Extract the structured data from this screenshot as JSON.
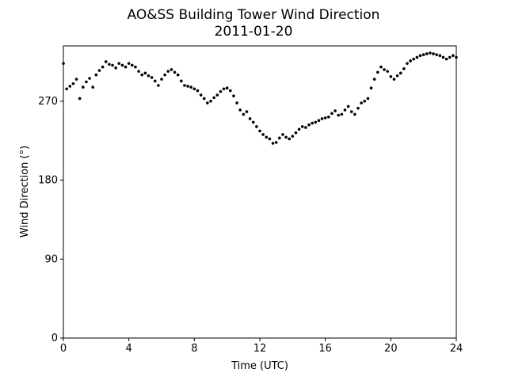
{
  "chart_data": {
    "type": "scatter",
    "title": "AO&SS Building Tower Wind Direction",
    "subtitle": "2011-01-20",
    "x_label": "Time (UTC)",
    "y_label": "Wind Direction (°)",
    "color": "#000000",
    "xlim": [
      0,
      24
    ],
    "xticks": [
      0,
      4,
      8,
      12,
      16,
      20,
      24
    ],
    "ylim": [
      0,
      333
    ],
    "yticks": [
      0,
      90,
      180,
      270
    ],
    "x": [
      0,
      0.2,
      0.4,
      0.6,
      0.8,
      1,
      1.2,
      1.4,
      1.6,
      1.8,
      2,
      2.2,
      2.4,
      2.6,
      2.8,
      3,
      3.2,
      3.4,
      3.6,
      3.8,
      4,
      4.2,
      4.4,
      4.6,
      4.8,
      5,
      5.2,
      5.4,
      5.6,
      5.8,
      6,
      6.2,
      6.4,
      6.6,
      6.8,
      7,
      7.2,
      7.4,
      7.6,
      7.8,
      8,
      8.2,
      8.4,
      8.6,
      8.8,
      9,
      9.2,
      9.4,
      9.6,
      9.8,
      10,
      10.2,
      10.4,
      10.6,
      10.8,
      11,
      11.2,
      11.4,
      11.6,
      11.8,
      12,
      12.2,
      12.4,
      12.6,
      12.8,
      13,
      13.2,
      13.4,
      13.6,
      13.8,
      14,
      14.2,
      14.4,
      14.6,
      14.8,
      15,
      15.2,
      15.4,
      15.6,
      15.8,
      16,
      16.2,
      16.4,
      16.6,
      16.8,
      17,
      17.2,
      17.4,
      17.6,
      17.8,
      18,
      18.2,
      18.4,
      18.6,
      18.8,
      19,
      19.2,
      19.4,
      19.6,
      19.8,
      20,
      20.2,
      20.4,
      20.6,
      20.8,
      21,
      21.2,
      21.4,
      21.6,
      21.8,
      22,
      22.2,
      22.4,
      22.6,
      22.8,
      23,
      23.2,
      23.4,
      23.6,
      23.8,
      24
    ],
    "values": [
      313,
      284,
      287,
      290,
      295,
      273,
      286,
      292,
      296,
      286,
      300,
      305,
      309,
      315,
      312,
      311,
      308,
      313,
      311,
      309,
      313,
      311,
      309,
      304,
      300,
      302,
      299,
      297,
      293,
      288,
      295,
      300,
      304,
      306,
      303,
      300,
      293,
      288,
      287,
      286,
      284,
      282,
      277,
      273,
      268,
      270,
      274,
      277,
      281,
      284,
      285,
      282,
      276,
      268,
      260,
      255,
      258,
      250,
      246,
      241,
      236,
      232,
      229,
      227,
      222,
      223,
      228,
      232,
      229,
      227,
      230,
      234,
      238,
      241,
      240,
      243,
      245,
      246,
      248,
      250,
      251,
      252,
      256,
      259,
      254,
      255,
      260,
      264,
      258,
      255,
      262,
      268,
      270,
      273,
      285,
      295,
      303,
      309,
      306,
      304,
      298,
      295,
      299,
      302,
      307,
      313,
      316,
      318,
      320,
      322,
      323,
      324,
      325,
      324,
      323,
      322,
      320,
      318,
      320,
      322,
      320
    ]
  }
}
